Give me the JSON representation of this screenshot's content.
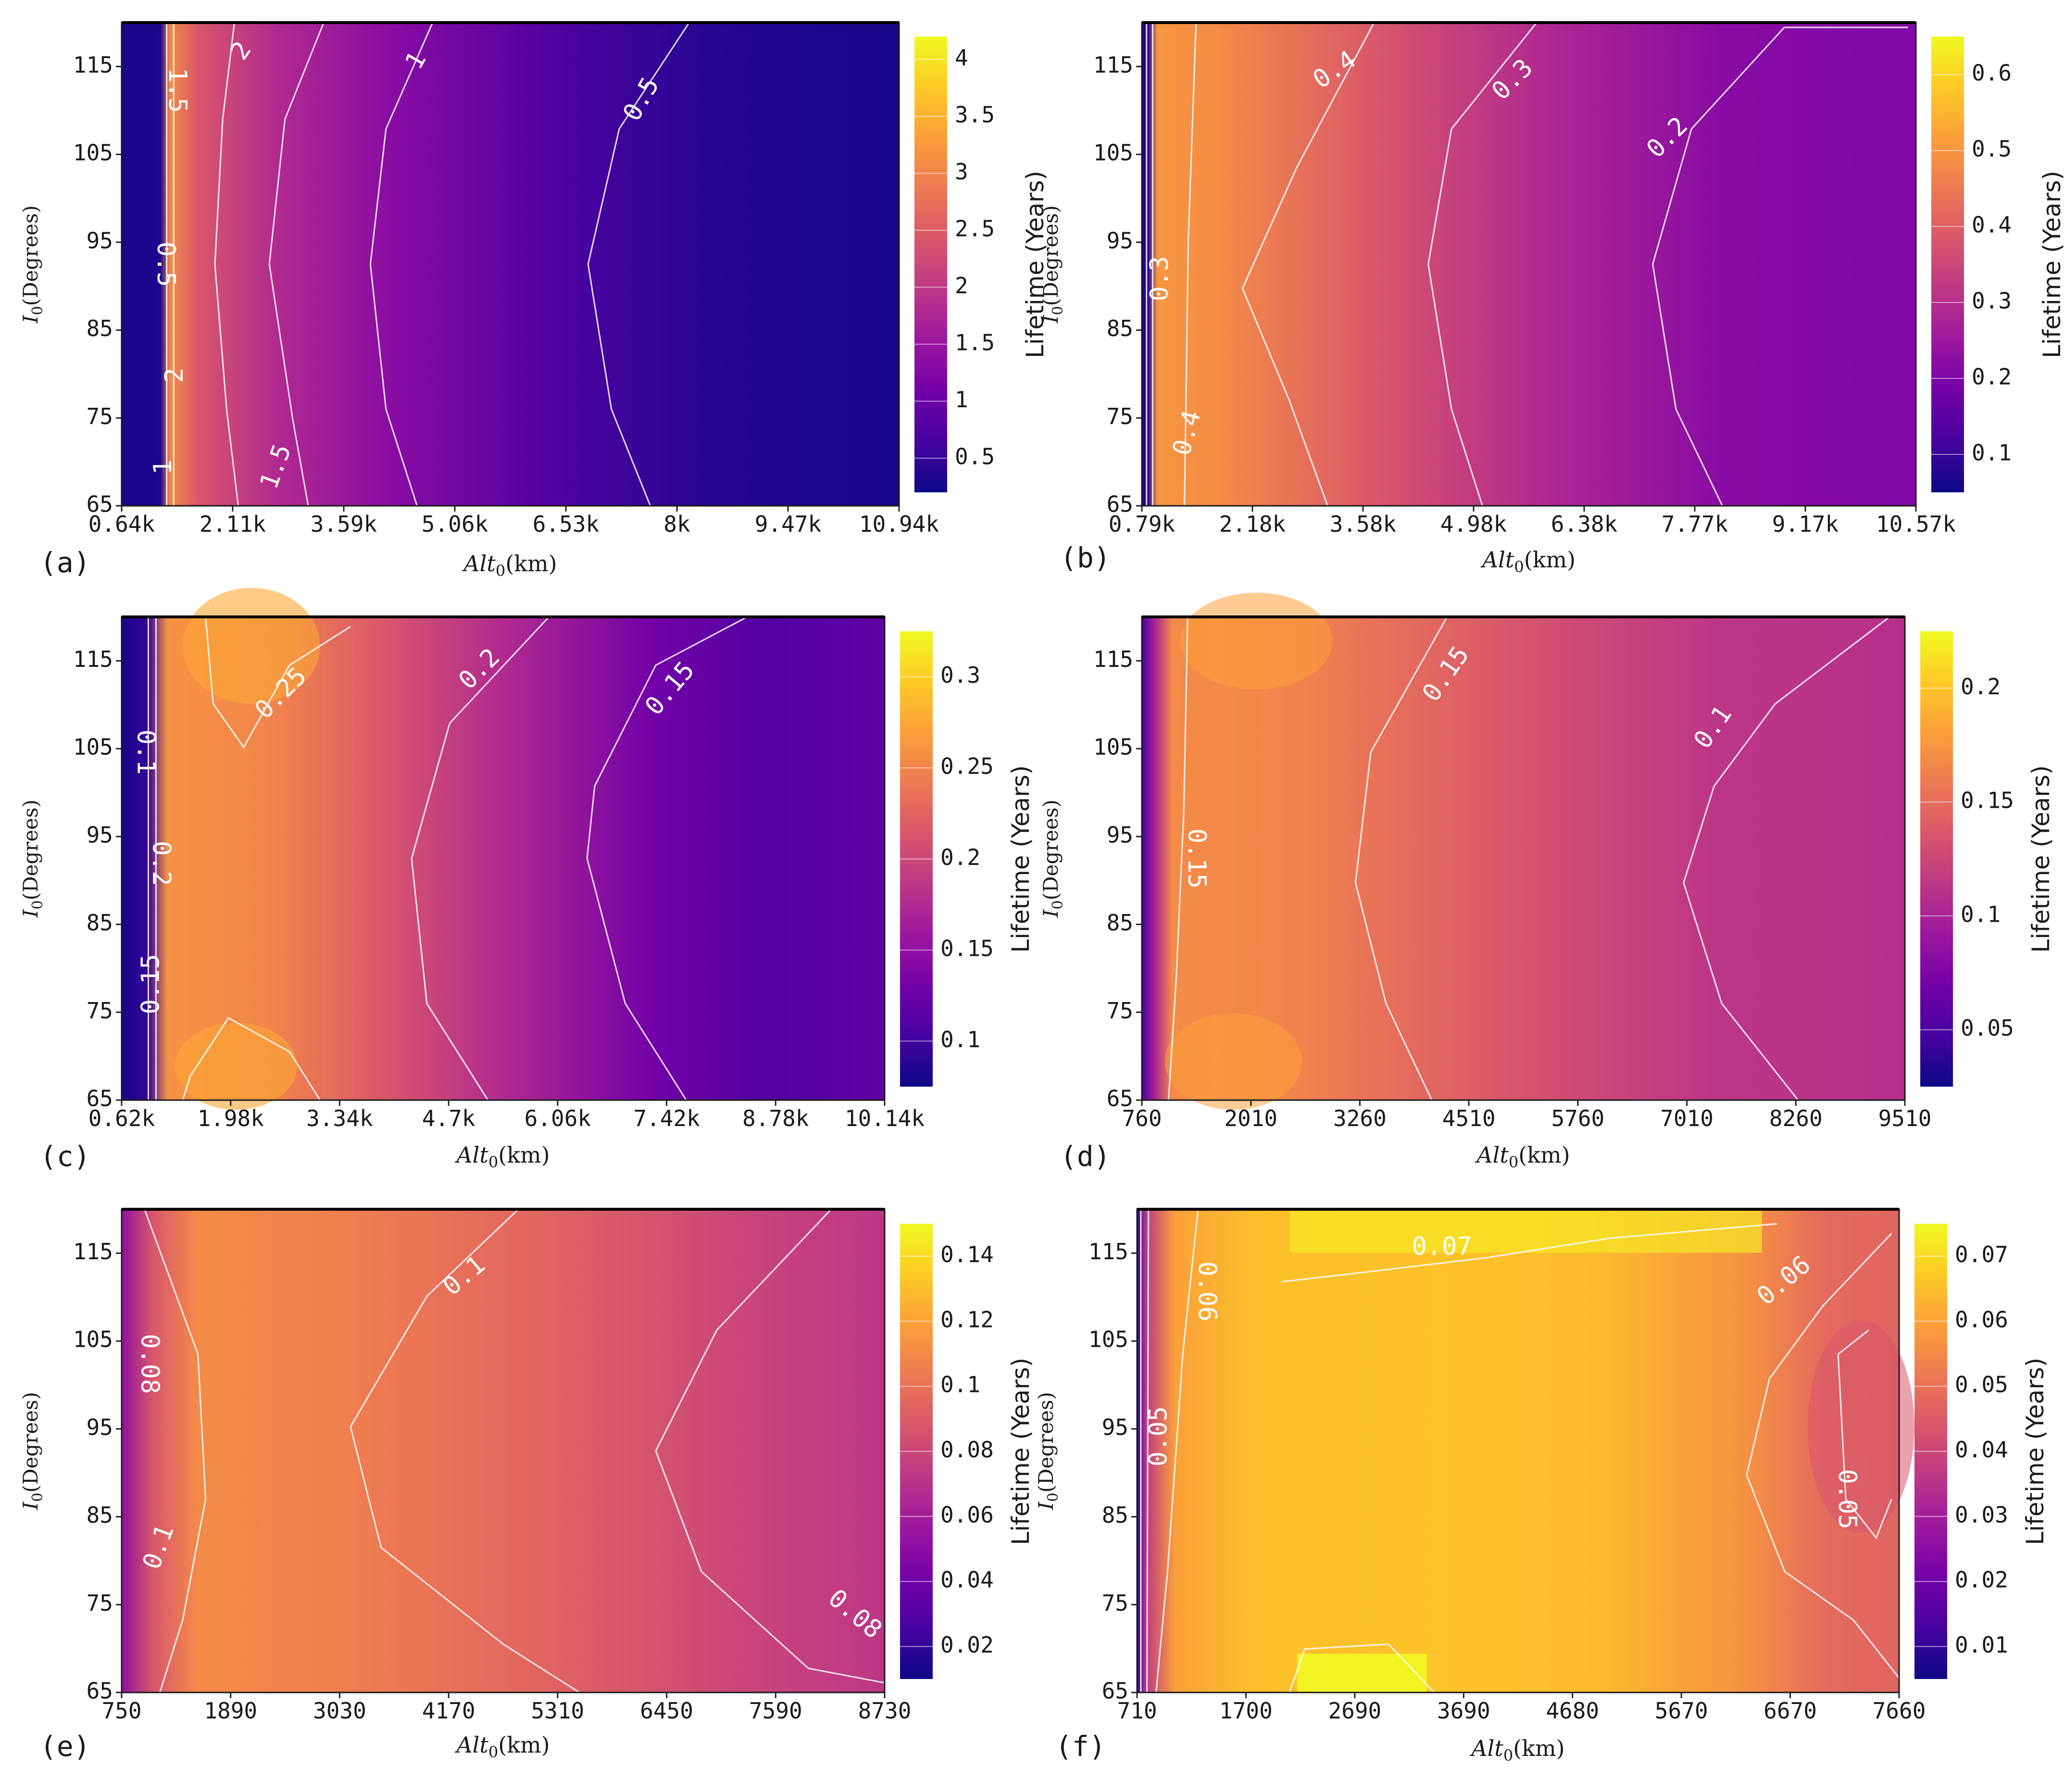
{
  "colorbar_label": "Lifetime (Years)",
  "colormap": [
    "#0d0887",
    "#46039f",
    "#7201a8",
    "#9c179e",
    "#bd3786",
    "#d8576b",
    "#ed7953",
    "#fb9f3a",
    "#fdca26",
    "#f0f921"
  ],
  "chart_data": [
    {
      "type": "heatmap",
      "panel_label": "(a)",
      "xlabel": "Alt0(km)",
      "ylabel": "I0(Degrees)",
      "x_ticks": [
        "0.64k",
        "2.11k",
        "3.59k",
        "5.06k",
        "6.53k",
        "8k",
        "9.47k",
        "10.94k"
      ],
      "y_ticks": [
        "65",
        "75",
        "85",
        "95",
        "105",
        "115"
      ],
      "ylim": [
        65,
        120
      ],
      "colorbar_ticks": [
        "0.5",
        "1",
        "1.5",
        "2",
        "2.5",
        "3",
        "3.5",
        "4"
      ],
      "colorbar_range": [
        0.2,
        4.2
      ],
      "contour_labels": [
        "1.5",
        "2",
        "1",
        "0.5",
        "0.5",
        "2",
        "1",
        "1.5"
      ]
    },
    {
      "type": "heatmap",
      "panel_label": "(b)",
      "xlabel": "Alt0(km)",
      "ylabel": "I0(Degrees)",
      "x_ticks": [
        "0.79k",
        "2.18k",
        "3.58k",
        "4.98k",
        "6.38k",
        "7.77k",
        "9.17k",
        "10.57k"
      ],
      "y_ticks": [
        "65",
        "75",
        "85",
        "95",
        "105",
        "115"
      ],
      "ylim": [
        65,
        120
      ],
      "colorbar_ticks": [
        "0.1",
        "0.2",
        "0.3",
        "0.4",
        "0.5",
        "0.6"
      ],
      "colorbar_range": [
        0.05,
        0.65
      ],
      "contour_labels": [
        "0.4",
        "0.3",
        "0.2",
        "0.3",
        "0.4"
      ]
    },
    {
      "type": "heatmap",
      "panel_label": "(c)",
      "xlabel": "Alt0(km)",
      "ylabel": "I0(Degrees)",
      "x_ticks": [
        "0.62k",
        "1.98k",
        "3.34k",
        "4.7k",
        "6.06k",
        "7.42k",
        "8.78k",
        "10.14k"
      ],
      "y_ticks": [
        "65",
        "75",
        "85",
        "95",
        "105",
        "115"
      ],
      "ylim": [
        65,
        120
      ],
      "colorbar_ticks": [
        "0.1",
        "0.15",
        "0.2",
        "0.25",
        "0.3"
      ],
      "colorbar_range": [
        0.075,
        0.325
      ],
      "contour_labels": [
        "0.25",
        "0.2",
        "0.15",
        "0.1",
        "0.2",
        "0.15"
      ]
    },
    {
      "type": "heatmap",
      "panel_label": "(d)",
      "xlabel": "Alt0(km)",
      "ylabel": "I0(Degrees)",
      "x_ticks": [
        "760",
        "2010",
        "3260",
        "4510",
        "5760",
        "7010",
        "8260",
        "9510"
      ],
      "y_ticks": [
        "65",
        "75",
        "85",
        "95",
        "105",
        "115"
      ],
      "ylim": [
        65,
        120
      ],
      "colorbar_ticks": [
        "0.05",
        "0.1",
        "0.15",
        "0.2"
      ],
      "colorbar_range": [
        0.025,
        0.225
      ],
      "contour_labels": [
        "0.15",
        "0.1",
        "0.15"
      ]
    },
    {
      "type": "heatmap",
      "panel_label": "(e)",
      "xlabel": "Alt0(km)",
      "ylabel": "I0(Degrees)",
      "x_ticks": [
        "750",
        "1890",
        "3030",
        "4170",
        "5310",
        "6450",
        "7590",
        "8730"
      ],
      "y_ticks": [
        "65",
        "75",
        "85",
        "95",
        "105",
        "115"
      ],
      "ylim": [
        65,
        120
      ],
      "colorbar_ticks": [
        "0.02",
        "0.04",
        "0.06",
        "0.08",
        "0.1",
        "0.12",
        "0.14"
      ],
      "colorbar_range": [
        0.01,
        0.15
      ],
      "contour_labels": [
        "0.1",
        "0.08",
        "0.1",
        "0.08"
      ]
    },
    {
      "type": "heatmap",
      "panel_label": "(f)",
      "xlabel": "Alt0(km)",
      "ylabel": "I0(Degrees)",
      "x_ticks": [
        "710",
        "1700",
        "2690",
        "3690",
        "4680",
        "5670",
        "6670",
        "7660"
      ],
      "y_ticks": [
        "65",
        "75",
        "85",
        "95",
        "105",
        "115"
      ],
      "ylim": [
        65,
        120
      ],
      "colorbar_ticks": [
        "0.01",
        "0.02",
        "0.03",
        "0.04",
        "0.05",
        "0.06",
        "0.07"
      ],
      "colorbar_range": [
        0.005,
        0.075
      ],
      "contour_labels": [
        "0.07",
        "0.06",
        "0.06",
        "0.05",
        "0.05"
      ]
    }
  ]
}
